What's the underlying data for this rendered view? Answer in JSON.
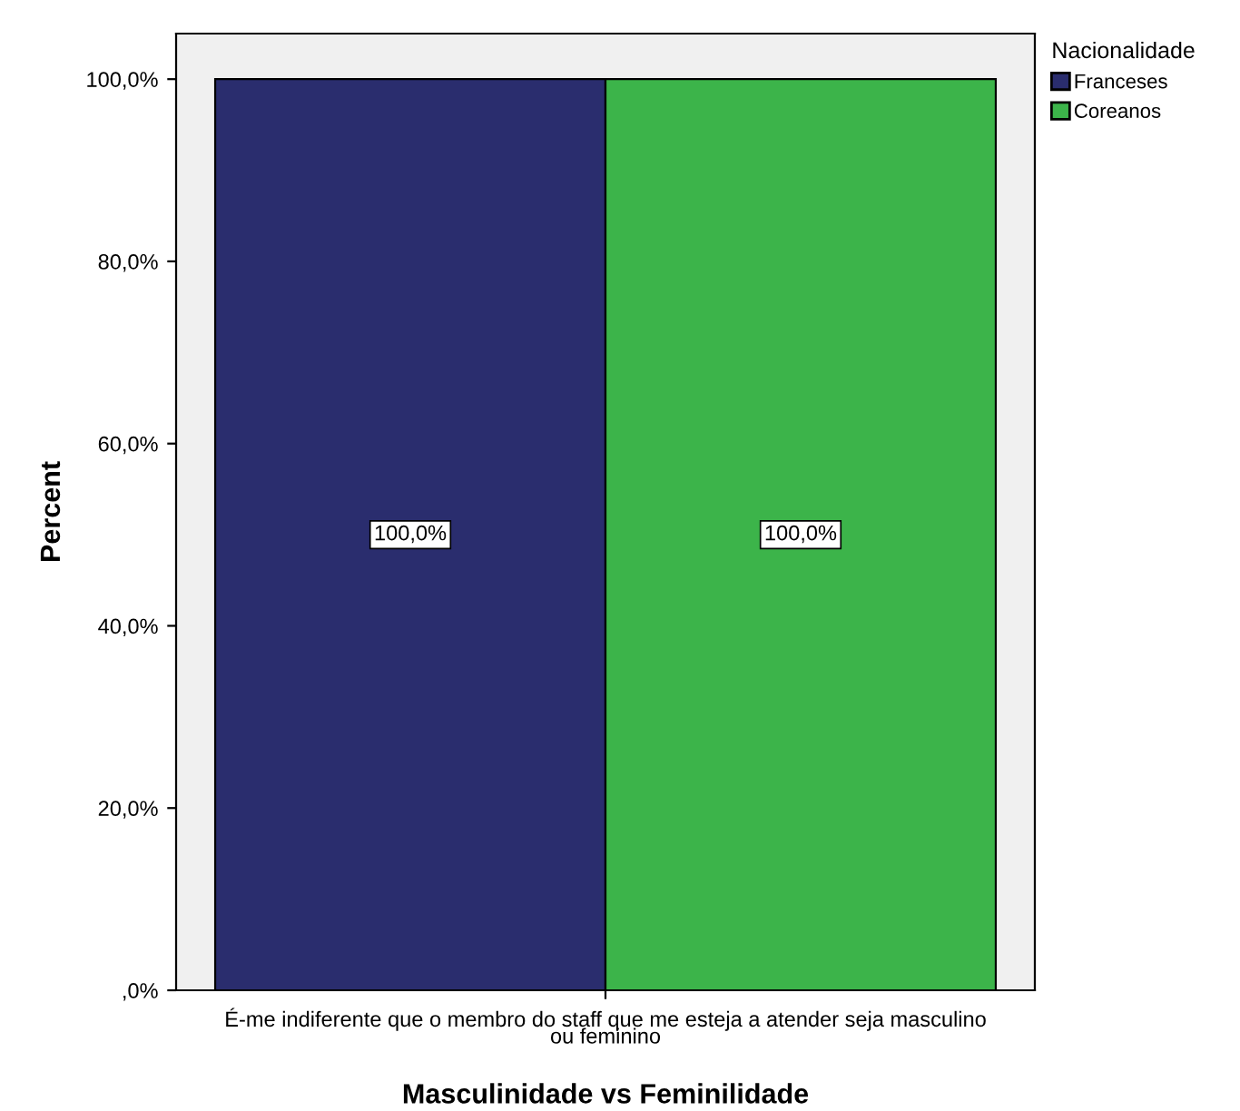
{
  "chart_data": {
    "type": "bar",
    "xlabel": "Masculinidade vs Feminilidade",
    "ylabel": "Percent",
    "legend_title": "Nacionalidade",
    "legend": "top right",
    "categories": [
      "É-me indiferente que o membro do staff que me esteja a atender seja masculino\nou feminino"
    ],
    "series": [
      {
        "name": "Franceses",
        "color": "#2a2d6e",
        "values": [
          100
        ],
        "value_labels": [
          "100,0%"
        ]
      },
      {
        "name": "Coreanos",
        "color": "#3cb44a",
        "values": [
          100
        ],
        "value_labels": [
          "100,0%"
        ]
      }
    ],
    "ylim": [
      0,
      105
    ],
    "yticks": [
      {
        "value": 0,
        "label": ",0%"
      },
      {
        "value": 20,
        "label": "20,0%"
      },
      {
        "value": 40,
        "label": "40,0%"
      },
      {
        "value": 60,
        "label": "60,0%"
      },
      {
        "value": 80,
        "label": "80,0%"
      },
      {
        "value": 100,
        "label": "100,0%"
      }
    ],
    "grid": false
  }
}
